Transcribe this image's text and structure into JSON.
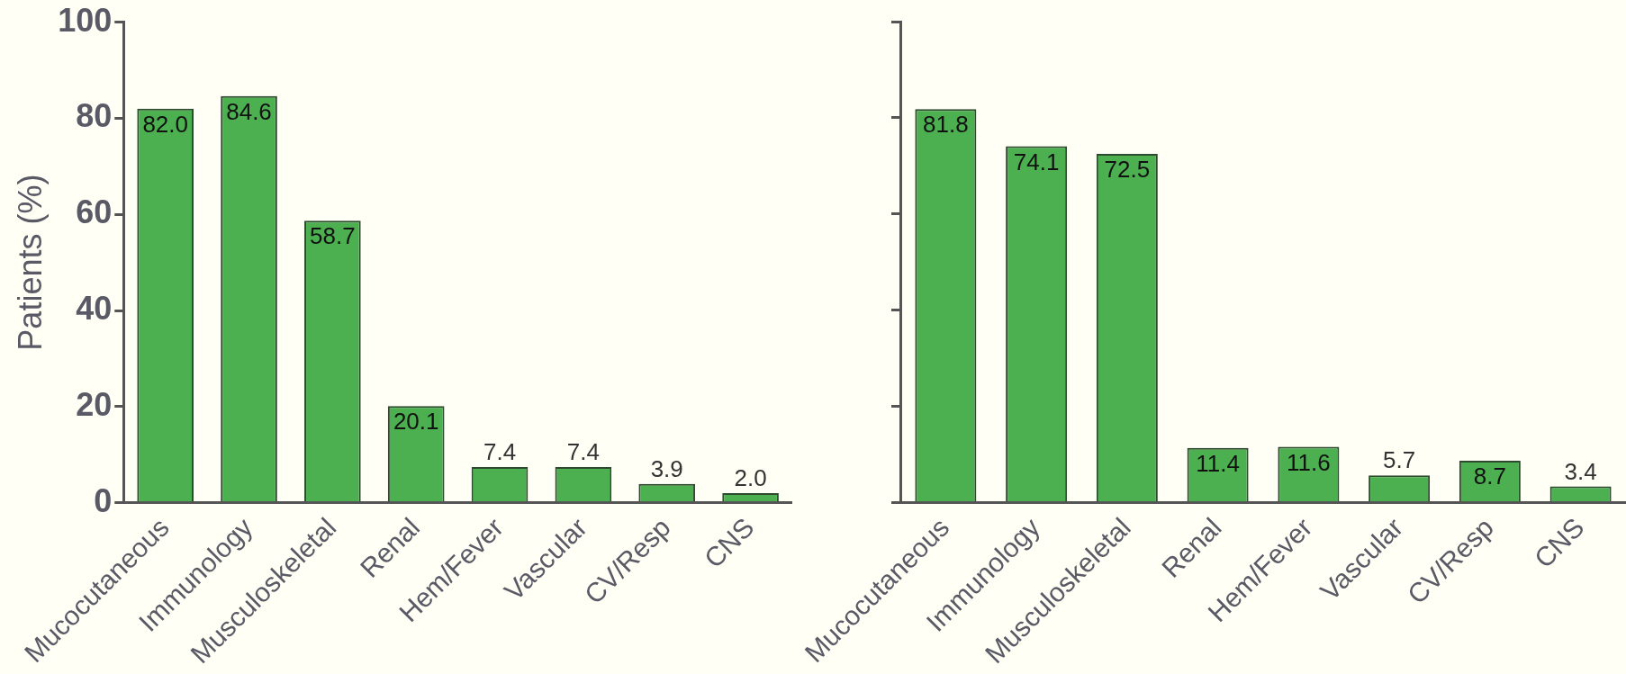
{
  "chart_data": [
    {
      "type": "bar",
      "ylabel": "Patients (%)",
      "categories": [
        "Mucocutaneous",
        "Immunology",
        "Musculoskeletal",
        "Renal",
        "Hem/Fever",
        "Vascular",
        "CV/Resp",
        "CNS"
      ],
      "values": [
        82.0,
        84.6,
        58.7,
        20.1,
        7.4,
        7.4,
        3.9,
        2.0
      ],
      "value_labels": [
        "82.0",
        "84.6",
        "58.7",
        "20.1",
        "7.4",
        "7.4",
        "3.9",
        "2.0"
      ],
      "color": "#4caf50",
      "ylim": [
        0,
        100
      ],
      "yticks": [
        0,
        20,
        40,
        60,
        80,
        100
      ],
      "grid": false,
      "legend": false
    },
    {
      "type": "bar",
      "categories": [
        "Mucocutaneous",
        "Immunology",
        "Musculoskeletal",
        "Renal",
        "Hem/Fever",
        "Vascular",
        "CV/Resp",
        "CNS"
      ],
      "values": [
        81.8,
        74.1,
        72.5,
        11.4,
        11.6,
        5.7,
        8.7,
        3.4
      ],
      "value_labels": [
        "81.8",
        "74.1",
        "72.5",
        "11.4",
        "11.6",
        "5.7",
        "8.7",
        "3.4"
      ],
      "color": "#4caf50",
      "ylim": [
        0,
        100
      ],
      "yticks": [
        0,
        20,
        40,
        60,
        80,
        100
      ],
      "grid": false,
      "legend": false,
      "tick_labels": "x"
    }
  ]
}
